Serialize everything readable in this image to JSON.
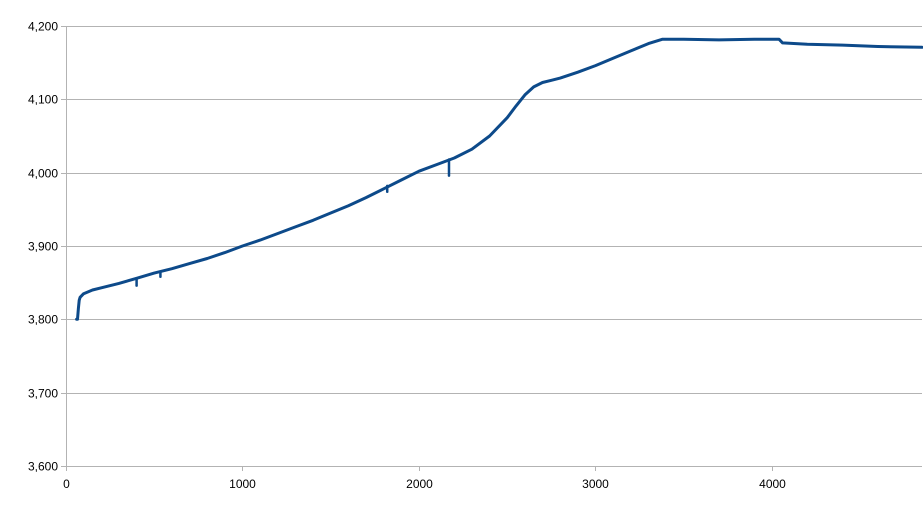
{
  "chart_data": {
    "type": "line",
    "title": "",
    "xlabel": "",
    "ylabel": "",
    "xlim": [
      0,
      4850
    ],
    "ylim": [
      3600,
      4200
    ],
    "x_ticks": [
      0,
      1000,
      2000,
      3000,
      4000
    ],
    "y_ticks": [
      3600,
      3700,
      3800,
      3900,
      4000,
      4100,
      4200
    ],
    "x_tick_labels": [
      "0",
      "1000",
      "2000",
      "3000",
      "4000"
    ],
    "y_tick_labels": [
      "3,600",
      "3,700",
      "3,800",
      "3,900",
      "4,000",
      "4,100",
      "4,200"
    ],
    "grid": "horizontal",
    "legend": "none",
    "colors": {
      "line": "#0d4a8a",
      "grid": "#b3b3b3",
      "axis": "#b3b3b3"
    },
    "series": [
      {
        "x": [
          60,
          65,
          70,
          75,
          80,
          100,
          150,
          200,
          300,
          400,
          500,
          600,
          700,
          800,
          900,
          1000,
          1100,
          1200,
          1300,
          1400,
          1500,
          1600,
          1700,
          1800,
          1900,
          2000,
          2100,
          2200,
          2300,
          2400,
          2500,
          2550,
          2600,
          2650,
          2700,
          2750,
          2800,
          2900,
          3000,
          3100,
          3200,
          3300,
          3380,
          3500,
          3700,
          3900,
          4000,
          4040,
          4060,
          4200,
          4400,
          4600,
          4850
        ],
        "y": [
          3800,
          3800,
          3815,
          3826,
          3830,
          3835,
          3840,
          3843,
          3849,
          3856,
          3863,
          3869,
          3876,
          3883,
          3891,
          3900,
          3908,
          3917,
          3926,
          3935,
          3945,
          3955,
          3966,
          3978,
          3990,
          4002,
          4011,
          4020,
          4032,
          4050,
          4075,
          4091,
          4106,
          4117,
          4123,
          4126,
          4129,
          4137,
          4146,
          4156,
          4166,
          4176,
          4182,
          4182,
          4181,
          4182,
          4182,
          4182,
          4177,
          4175,
          4174,
          4172,
          4171
        ]
      }
    ],
    "spikes": [
      {
        "x": 400,
        "from": 3856,
        "to": 3846
      },
      {
        "x": 535,
        "from": 3864,
        "to": 3858
      },
      {
        "x": 1820,
        "from": 3982,
        "to": 3974
      },
      {
        "x": 2170,
        "from": 4018,
        "to": 3996
      }
    ]
  }
}
